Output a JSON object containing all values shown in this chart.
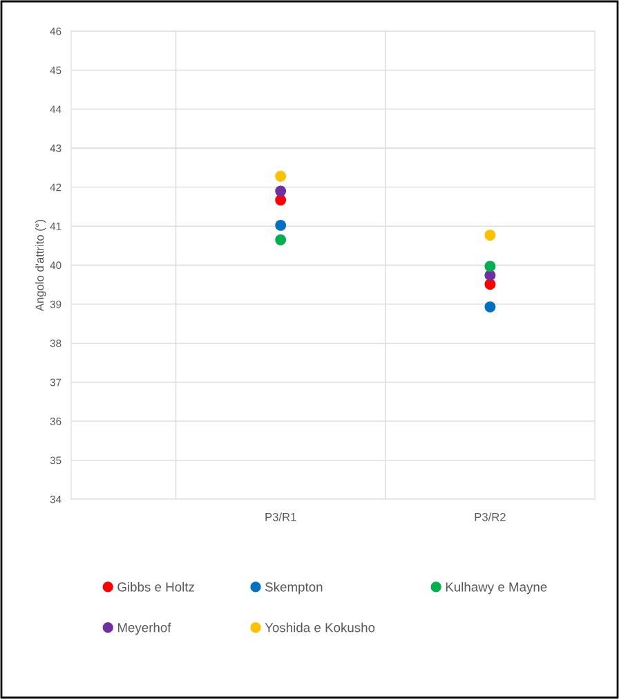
{
  "chart_data": {
    "type": "scatter",
    "ylabel": "Angolo d'attrito (°)",
    "categories": [
      null,
      null,
      "P3/R1",
      null,
      "P3/R2",
      null
    ],
    "ylim": [
      34,
      46
    ],
    "yticks": [
      34,
      35,
      36,
      37,
      38,
      39,
      40,
      41,
      42,
      43,
      44,
      45,
      46
    ],
    "grid": true,
    "legend": "bottom",
    "marker": "circle",
    "series": [
      {
        "name": "Gibbs e Holtz",
        "color": "#ff0000",
        "values": [
          null,
          null,
          41.67,
          null,
          39.51,
          null
        ]
      },
      {
        "name": "Meyerhof",
        "color": "#7030a0",
        "values": [
          null,
          null,
          41.9,
          null,
          39.74,
          null
        ]
      },
      {
        "name": "Skempton",
        "color": "#0070c0",
        "values": [
          null,
          null,
          41.02,
          null,
          38.93,
          null
        ]
      },
      {
        "name": "Yoshida e Kokusho",
        "color": "#ffc000",
        "values": [
          null,
          null,
          42.28,
          null,
          40.77,
          null
        ]
      },
      {
        "name": "Kulhawy e Mayne",
        "color": "#00b050",
        "values": [
          null,
          null,
          40.65,
          null,
          39.97,
          null
        ]
      }
    ]
  }
}
